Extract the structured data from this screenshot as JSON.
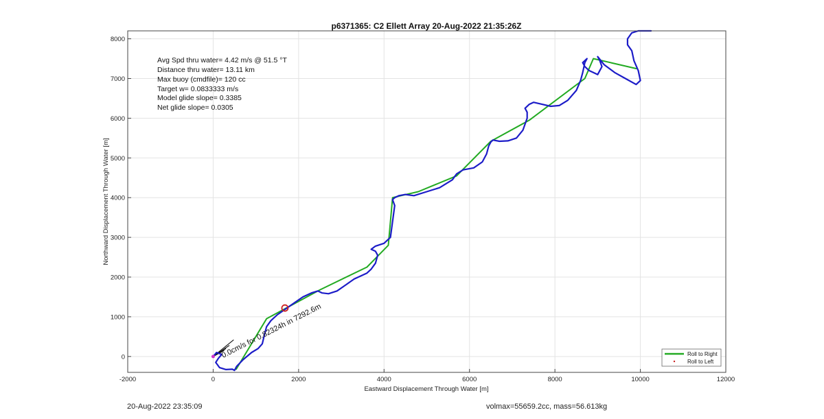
{
  "chart_data": {
    "type": "line",
    "title": "p6371365: C2 Ellett Array 20-Aug-2022 21:35:26Z",
    "xlabel": "Eastward Displacement Through Water [m]",
    "ylabel": "Northward Displacement Through Water [m]",
    "xlim": [
      -2000,
      12000
    ],
    "ylim": [
      -400,
      8200
    ],
    "xticks": [
      -2000,
      0,
      2000,
      4000,
      6000,
      8000,
      10000,
      12000
    ],
    "yticks": [
      0,
      1000,
      2000,
      3000,
      4000,
      5000,
      6000,
      7000,
      8000
    ],
    "grid": true,
    "annotations": [
      "Avg Spd thru water=  4.42 m/s @  51.5 °T",
      "Distance thru water= 13.11 km",
      "Max buoy (cmdfile)= 120 cc",
      "Target w= 0.0833333 m/s",
      "Model glide slope= 0.3385",
      "Net glide slope= 0.0305"
    ],
    "current_label": "0.82324h in 7292.6m",
    "current_label_visible": "0.0cm/s for 0.82324h in 7292.6m",
    "series": [
      {
        "name": "Roll to Right",
        "color": "#22aa22",
        "style": "line",
        "x": [
          540,
          1250,
          2500,
          3600,
          4100,
          4200,
          4800,
          5700,
          6500,
          7400,
          8700,
          8900,
          9900
        ],
        "y": [
          -320,
          950,
          1680,
          2250,
          2800,
          4000,
          4150,
          4550,
          5420,
          5950,
          7000,
          7500,
          7250
        ]
      },
      {
        "name": "Roll to Left",
        "color": "#cc2222",
        "style": "points",
        "x": [],
        "y": []
      },
      {
        "name": "",
        "color": "#1c1cc8",
        "style": "line",
        "x": [
          0,
          80,
          200,
          120,
          60,
          150,
          300,
          450,
          500,
          550,
          700,
          900,
          1050,
          1150,
          1200,
          1250,
          1350,
          1500,
          1700,
          1900,
          2100,
          2300,
          2450,
          2550,
          2700,
          2900,
          3100,
          3300,
          3500,
          3600,
          3700,
          3800,
          3850,
          3800,
          3700,
          3800,
          4000,
          4150,
          4200,
          4250,
          4200,
          4250,
          4350,
          4500,
          4700,
          5000,
          5300,
          5600,
          5700,
          5850,
          6100,
          6300,
          6400,
          6450,
          6500,
          6550,
          6700,
          6900,
          7100,
          7250,
          7350,
          7350,
          7300,
          7400,
          7500,
          7700,
          7900,
          8100,
          8300,
          8500,
          8600,
          8650,
          8700,
          8750,
          8700,
          8650,
          8700,
          8800,
          8900,
          9000,
          9100,
          9050,
          9000,
          9150,
          9400,
          9650,
          9900,
          10000,
          9950,
          9850,
          9800,
          9700,
          9700,
          9800,
          9950,
          10100,
          10250
        ],
        "y": [
          0,
          100,
          50,
          -50,
          -150,
          -280,
          -330,
          -320,
          -350,
          -250,
          -80,
          100,
          200,
          320,
          550,
          750,
          900,
          1050,
          1200,
          1350,
          1500,
          1600,
          1650,
          1600,
          1580,
          1650,
          1800,
          1950,
          2050,
          2100,
          2200,
          2350,
          2550,
          2650,
          2700,
          2780,
          2850,
          3000,
          3400,
          3800,
          3950,
          4000,
          4050,
          4080,
          4050,
          4150,
          4250,
          4450,
          4600,
          4700,
          4750,
          4900,
          5100,
          5300,
          5400,
          5450,
          5420,
          5430,
          5500,
          5700,
          6000,
          6150,
          6250,
          6350,
          6400,
          6350,
          6300,
          6320,
          6450,
          6700,
          6950,
          7150,
          7400,
          7500,
          7450,
          7400,
          7300,
          7200,
          7150,
          7100,
          7300,
          7450,
          7550,
          7350,
          7150,
          7000,
          6850,
          6950,
          7200,
          7450,
          7700,
          7850,
          8000,
          8150,
          8200,
          8200,
          8200
        ]
      }
    ],
    "marker": {
      "x": 1680,
      "y": 1220,
      "color": "#cc2222"
    },
    "legend_position": "bottom-right"
  },
  "footer": {
    "left": "20-Aug-2022 23:35:09",
    "right": "volmax=55659.2cc, mass=56.613kg"
  },
  "legend": {
    "roll_right": "Roll to Right",
    "roll_left": "Roll to Left"
  }
}
